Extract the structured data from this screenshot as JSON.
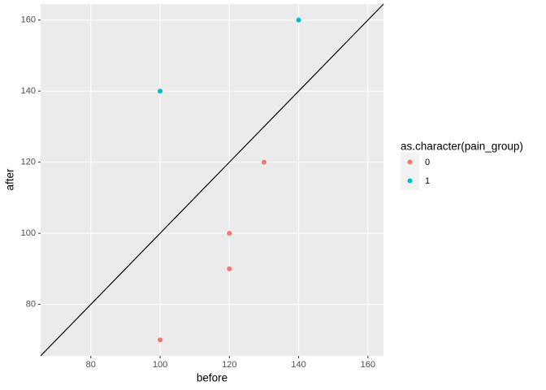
{
  "chart_data": {
    "type": "scatter",
    "x_label": "before",
    "y_label": "after",
    "legend_title": "as.character(pain_group)",
    "xlim": [
      65.5,
      164.5
    ],
    "ylim": [
      65.5,
      164.5
    ],
    "xticks": [
      80,
      100,
      120,
      140,
      160
    ],
    "yticks": [
      80,
      100,
      120,
      140,
      160
    ],
    "grid": true,
    "legend": "right",
    "series": [
      {
        "name": "0",
        "color": "#F8766D",
        "x": [
          100,
          120,
          120,
          130
        ],
        "values": [
          70,
          90,
          100,
          120
        ]
      },
      {
        "name": "1",
        "color": "#00BFC4",
        "x": [
          100,
          140
        ],
        "values": [
          140,
          160
        ]
      }
    ]
  }
}
